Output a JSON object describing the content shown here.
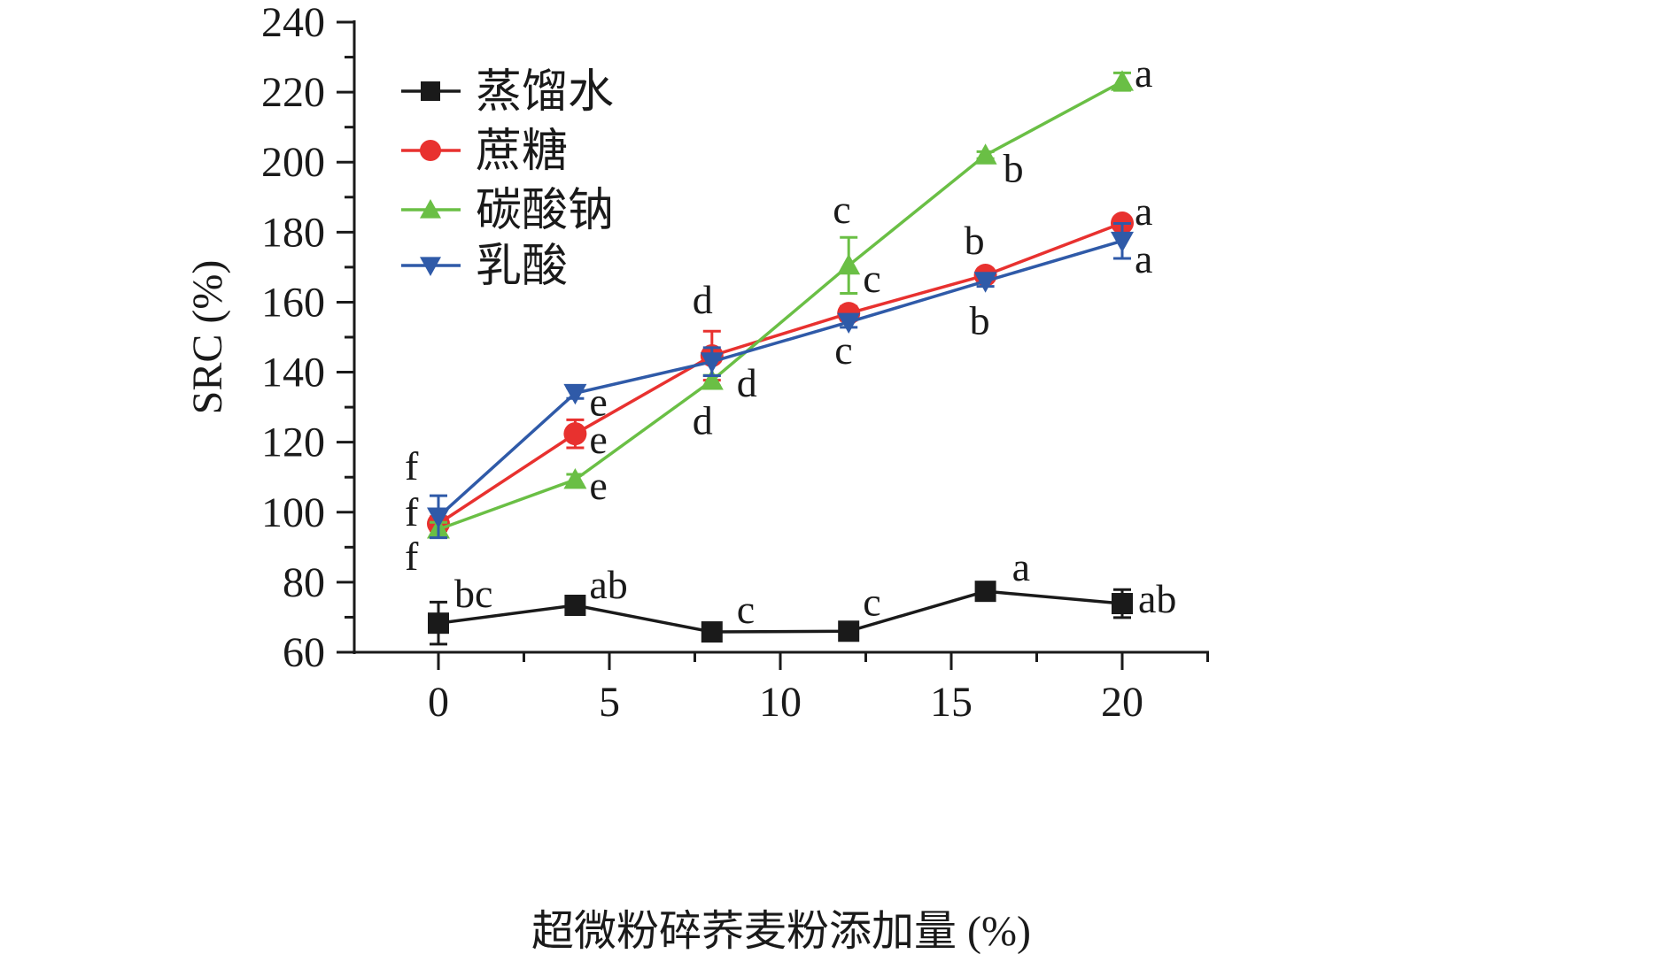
{
  "chart_data": {
    "type": "line",
    "xlabel": "超微粉碎荞麦粉添加量 (%)",
    "ylabel": "SRC (%)",
    "xlim": [
      -2.5,
      22.5
    ],
    "ylim": [
      60,
      240
    ],
    "x_ticks": [
      0,
      5,
      10,
      15,
      20
    ],
    "y_ticks": [
      60,
      80,
      100,
      120,
      140,
      160,
      180,
      200,
      220,
      240
    ],
    "legend_position": "top-left",
    "grid": false,
    "x": [
      0,
      4,
      8,
      12,
      16,
      20
    ],
    "series": [
      {
        "name": "蒸馏水",
        "color": "#1a1a1a",
        "marker": "square",
        "values": [
          68.3,
          73.4,
          65.8,
          66.0,
          77.4,
          73.9
        ],
        "errors": [
          6,
          2.5,
          1,
          2,
          2,
          4
        ],
        "letters": [
          "bc",
          "ab",
          "c",
          "c",
          "a",
          "ab"
        ]
      },
      {
        "name": "蔗糖",
        "color": "#e8312f",
        "marker": "circle",
        "values": [
          96.7,
          122.4,
          144.7,
          156.8,
          167.7,
          182.6
        ],
        "errors": [
          2,
          4,
          7,
          2,
          1.5,
          1
        ],
        "letters": [
          "f",
          "e",
          "d",
          "c",
          "b",
          "a"
        ]
      },
      {
        "name": "碳酸钠",
        "color": "#6abf45",
        "marker": "triangle-up",
        "values": [
          95.1,
          109.3,
          137.6,
          170.5,
          202.0,
          223.0
        ],
        "errors": [
          2,
          1.5,
          1.5,
          8,
          1,
          2.5
        ],
        "letters": [
          "f",
          "e",
          "d",
          "c",
          "b",
          "a"
        ]
      },
      {
        "name": "乳酸",
        "color": "#2f5aa8",
        "marker": "triangle-down",
        "values": [
          98.7,
          134.0,
          143.0,
          154.3,
          166.0,
          177.5
        ],
        "errors": [
          6,
          1.5,
          4,
          1.5,
          1.5,
          5
        ],
        "letters": [
          "f",
          "e",
          "d",
          "c",
          "b",
          "a"
        ]
      }
    ]
  }
}
